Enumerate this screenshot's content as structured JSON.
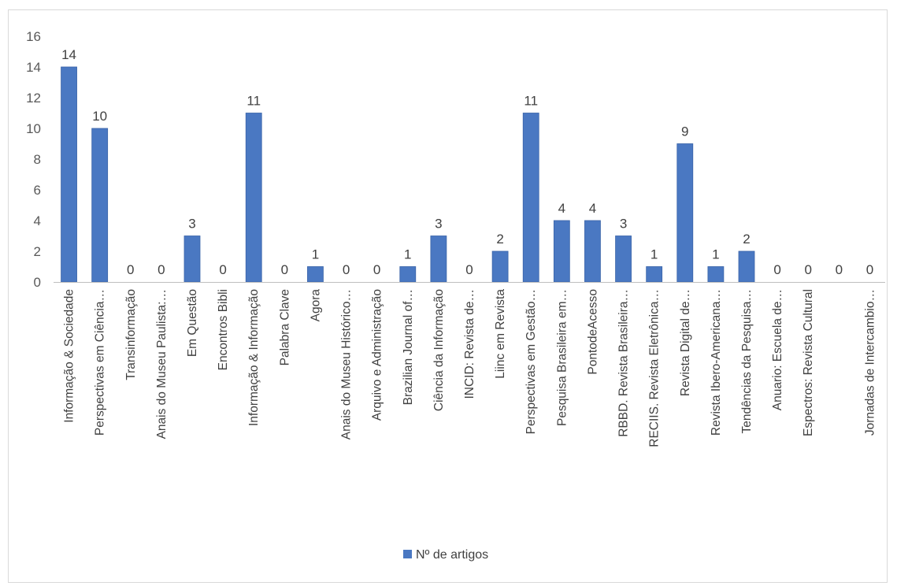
{
  "chart_data": {
    "type": "bar",
    "categories": [
      "Informação & Sociedade",
      "Perspectivas em Ciência…",
      "Transinformação",
      "Anais do Museu Paulista:…",
      "Em Questão",
      "Encontros Bibli",
      "Informação & Informação",
      "Palabra Clave",
      "Agora",
      "Anais do Museu Histórico…",
      "Arquivo e Administração",
      "Brazilian Journal of…",
      "Ciência da Informação",
      "INCID: Revista de…",
      "Liinc em Revista",
      "Perspectivas em Gestão…",
      "Pesquisa Brasileira em…",
      "PontodeAcesso",
      "RBBD. Revista Brasileira…",
      "RECIIS. Revista Eletrônica…",
      "Revista Digital de…",
      "Revista Ibero-Americana…",
      "Tendências da Pesquisa…",
      "Anuario: Escuela de…",
      "Espectros: Revista Cultural",
      "",
      "Jornadas de Intercambio…"
    ],
    "series": [
      {
        "name": "Nº de artigos",
        "values": [
          14,
          10,
          0,
          0,
          3,
          0,
          11,
          0,
          1,
          0,
          0,
          1,
          3,
          0,
          2,
          11,
          4,
          4,
          3,
          1,
          9,
          1,
          2,
          0,
          0,
          0,
          0
        ]
      }
    ],
    "yticks": [
      "0",
      "2",
      "4",
      "6",
      "8",
      "10",
      "12",
      "14",
      "16"
    ],
    "ylim": [
      0,
      16
    ],
    "grid": false,
    "legend_position": "bottom",
    "colors": {
      "bar": "#4a78c2",
      "bar_edge": "#3a64a8",
      "axis": "#bfbfbf"
    }
  }
}
